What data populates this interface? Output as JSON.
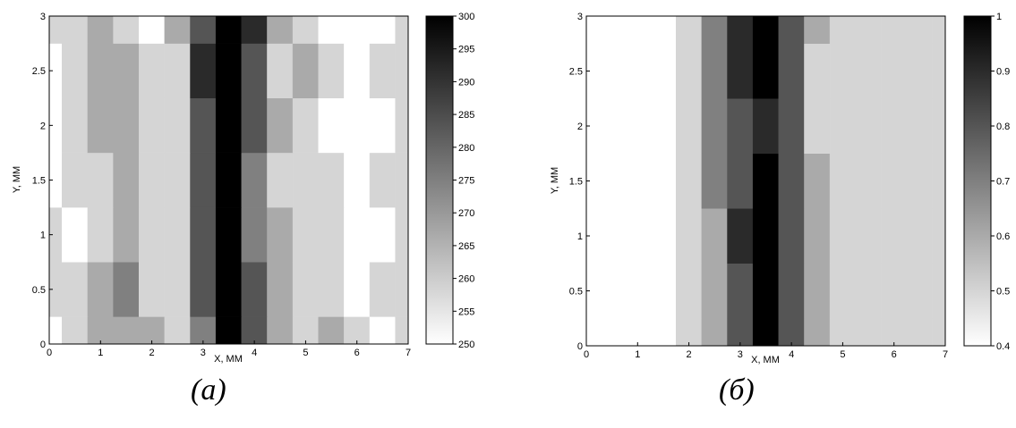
{
  "chart_data": [
    {
      "panel": "a",
      "type": "heatmap",
      "caption": "(a)",
      "xlabel": "X, MM",
      "ylabel": "Y, MM",
      "xlim": [
        0,
        7
      ],
      "ylim": [
        0,
        3
      ],
      "xticks": [
        "0",
        "1",
        "2",
        "3",
        "4",
        "5",
        "6",
        "7"
      ],
      "yticks": [
        "0",
        "0.5",
        "1",
        "1.5",
        "2",
        "2.5",
        "3"
      ],
      "colorbar": {
        "min": 250,
        "max": 300,
        "ticks": [
          "250",
          "255",
          "260",
          "265",
          "270",
          "275",
          "280",
          "285",
          "290",
          "295",
          "300"
        ]
      },
      "x": [
        0,
        0.5,
        1,
        1.5,
        2,
        2.5,
        3,
        3.5,
        4,
        4.5,
        5,
        5.5,
        6,
        6.5,
        7
      ],
      "y": [
        0,
        0.5,
        1,
        1.5,
        2,
        2.5,
        3
      ],
      "z": [
        [
          252,
          262,
          266,
          270,
          266,
          262,
          276,
          298,
          282,
          268,
          262,
          266,
          258,
          256,
          262
        ],
        [
          258,
          264,
          268,
          272,
          262,
          260,
          280,
          298,
          284,
          270,
          264,
          258,
          252,
          262,
          264
        ],
        [
          260,
          256,
          264,
          266,
          260,
          264,
          282,
          298,
          276,
          268,
          262,
          260,
          252,
          252,
          262
        ],
        [
          252,
          260,
          262,
          268,
          264,
          262,
          280,
          298,
          278,
          264,
          260,
          262,
          254,
          258,
          262
        ],
        [
          256,
          262,
          266,
          270,
          260,
          262,
          281,
          298,
          284,
          266,
          262,
          256,
          252,
          256,
          264
        ],
        [
          254,
          264,
          270,
          266,
          258,
          264,
          286,
          298,
          280,
          264,
          266,
          260,
          254,
          260,
          262
        ],
        [
          258,
          262,
          266,
          264,
          256,
          266,
          284,
          298,
          286,
          268,
          262,
          256,
          252,
          256,
          264
        ]
      ]
    },
    {
      "panel": "b",
      "type": "heatmap",
      "caption": "(б)",
      "xlabel": "X, MM",
      "ylabel": "Y, MM",
      "xlim": [
        0,
        7
      ],
      "ylim": [
        0,
        3
      ],
      "xticks": [
        "0",
        "1",
        "2",
        "3",
        "4",
        "5",
        "6",
        "7"
      ],
      "yticks": [
        "0",
        "0.5",
        "1",
        "1.5",
        "2",
        "2.5",
        "3"
      ],
      "colorbar": {
        "min": 0.4,
        "max": 1,
        "ticks": [
          "0.4",
          "0.5",
          "0.6",
          "0.7",
          "0.8",
          "0.9",
          "1"
        ]
      },
      "x": [
        0,
        0.5,
        1,
        1.5,
        2,
        2.5,
        3,
        3.5,
        4,
        4.5,
        5,
        5.5,
        6,
        6.5,
        7
      ],
      "y": [
        0,
        0.5,
        1,
        1.5,
        2,
        2.5,
        3
      ],
      "z": [
        [
          0.42,
          0.41,
          0.42,
          0.43,
          0.5,
          0.6,
          0.8,
          0.96,
          0.78,
          0.58,
          0.52,
          0.52,
          0.52,
          0.52,
          0.52
        ],
        [
          0.41,
          0.42,
          0.41,
          0.44,
          0.52,
          0.62,
          0.82,
          0.95,
          0.8,
          0.6,
          0.52,
          0.52,
          0.52,
          0.52,
          0.52
        ],
        [
          0.42,
          0.41,
          0.42,
          0.42,
          0.5,
          0.64,
          0.84,
          0.96,
          0.82,
          0.6,
          0.52,
          0.52,
          0.52,
          0.52,
          0.52
        ],
        [
          0.41,
          0.41,
          0.44,
          0.46,
          0.5,
          0.66,
          0.82,
          0.92,
          0.8,
          0.58,
          0.52,
          0.52,
          0.52,
          0.52,
          0.52
        ],
        [
          0.41,
          0.41,
          0.46,
          0.48,
          0.54,
          0.66,
          0.82,
          0.9,
          0.76,
          0.56,
          0.52,
          0.52,
          0.52,
          0.52,
          0.52
        ],
        [
          0.41,
          0.41,
          0.42,
          0.46,
          0.56,
          0.68,
          0.84,
          0.92,
          0.76,
          0.56,
          0.54,
          0.52,
          0.52,
          0.52,
          0.52
        ],
        [
          0.41,
          0.42,
          0.44,
          0.48,
          0.56,
          0.7,
          0.86,
          0.94,
          0.8,
          0.58,
          0.56,
          0.52,
          0.52,
          0.52,
          0.52
        ]
      ]
    }
  ]
}
